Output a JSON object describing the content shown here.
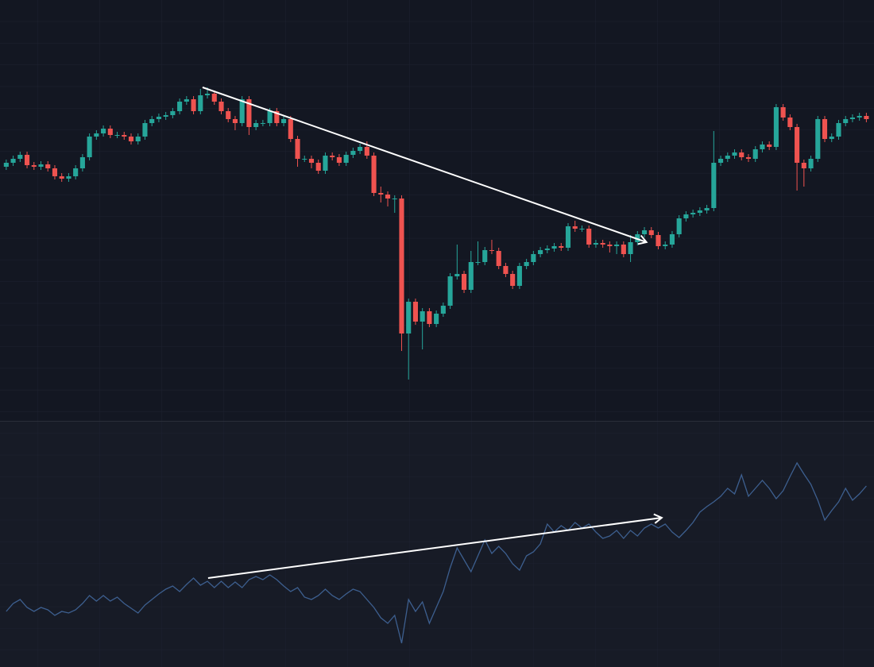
{
  "chart_data": [
    {
      "type": "candlestick",
      "up_color": "#26a69a",
      "down_color": "#ef5350",
      "xlim": [
        -0.9,
        125.1
      ],
      "ylim": [
        0,
        530
      ],
      "open": [
        320,
        325,
        330,
        335,
        322,
        320,
        323,
        318,
        308,
        305,
        308,
        318,
        332,
        358,
        362,
        368,
        360,
        360,
        358,
        352,
        358,
        375,
        380,
        383,
        385,
        390,
        402,
        405,
        390,
        410,
        412,
        402,
        390,
        380,
        375,
        405,
        370,
        375,
        375,
        390,
        375,
        380,
        355,
        330,
        330,
        325,
        315,
        334,
        332,
        325,
        335,
        340,
        345,
        334,
        287,
        285,
        280,
        280,
        110,
        150,
        125,
        138,
        122,
        135,
        145,
        182,
        185,
        165,
        200,
        200,
        215,
        214,
        195,
        185,
        170,
        195,
        200,
        210,
        215,
        217,
        220,
        218,
        245,
        242,
        242,
        222,
        224,
        222,
        220,
        222,
        210,
        225,
        235,
        240,
        234,
        220,
        222,
        235,
        255,
        260,
        262,
        265,
        268,
        325,
        330,
        334,
        338,
        332,
        330,
        342,
        348,
        345,
        395,
        382,
        370,
        325,
        318,
        330,
        380,
        355,
        358,
        375,
        380,
        382,
        384
      ],
      "high": [
        329,
        334,
        339,
        339,
        326,
        327,
        327,
        322,
        312,
        312,
        322,
        336,
        362,
        366,
        372,
        372,
        364,
        364,
        362,
        362,
        379,
        384,
        387,
        389,
        394,
        406,
        409,
        409,
        418,
        420,
        416,
        406,
        394,
        384,
        409,
        409,
        379,
        379,
        394,
        394,
        384,
        384,
        359,
        334,
        334,
        329,
        338,
        338,
        336,
        339,
        344,
        349,
        352,
        338,
        295,
        289,
        284,
        284,
        154,
        154,
        142,
        142,
        139,
        149,
        186,
        222,
        189,
        214,
        226,
        219,
        228,
        218,
        199,
        189,
        199,
        204,
        214,
        219,
        221,
        224,
        224,
        249,
        252,
        246,
        246,
        228,
        228,
        226,
        226,
        226,
        234,
        239,
        244,
        244,
        238,
        226,
        239,
        259,
        264,
        266,
        269,
        272,
        365,
        334,
        338,
        342,
        342,
        336,
        346,
        352,
        352,
        399,
        399,
        386,
        374,
        329,
        334,
        384,
        384,
        362,
        379,
        384,
        386,
        388,
        388
      ],
      "low": [
        316,
        321,
        326,
        318,
        316,
        316,
        314,
        304,
        301,
        301,
        304,
        314,
        328,
        354,
        358,
        356,
        356,
        354,
        348,
        348,
        354,
        371,
        376,
        379,
        381,
        386,
        398,
        386,
        386,
        406,
        398,
        386,
        376,
        366,
        371,
        360,
        366,
        371,
        371,
        371,
        371,
        351,
        320,
        326,
        318,
        311,
        311,
        328,
        321,
        321,
        331,
        336,
        330,
        283,
        275,
        270,
        262,
        88,
        52,
        121,
        90,
        118,
        118,
        131,
        141,
        178,
        161,
        161,
        196,
        196,
        210,
        191,
        181,
        166,
        166,
        191,
        196,
        206,
        211,
        213,
        214,
        214,
        238,
        238,
        218,
        218,
        218,
        212,
        210,
        206,
        200,
        221,
        231,
        230,
        216,
        216,
        218,
        231,
        251,
        256,
        258,
        261,
        264,
        321,
        326,
        330,
        328,
        326,
        326,
        338,
        341,
        341,
        378,
        366,
        290,
        295,
        314,
        326,
        351,
        351,
        354,
        371,
        376,
        378,
        376
      ],
      "close": [
        325,
        330,
        335,
        322,
        320,
        323,
        318,
        308,
        305,
        308,
        318,
        332,
        358,
        362,
        368,
        360,
        360,
        358,
        352,
        358,
        375,
        380,
        383,
        385,
        390,
        402,
        405,
        390,
        410,
        412,
        402,
        390,
        380,
        375,
        405,
        370,
        375,
        375,
        390,
        375,
        380,
        355,
        330,
        330,
        325,
        315,
        334,
        332,
        325,
        335,
        340,
        345,
        334,
        287,
        285,
        280,
        280,
        110,
        150,
        125,
        138,
        122,
        135,
        145,
        182,
        185,
        165,
        200,
        200,
        215,
        214,
        195,
        185,
        170,
        195,
        200,
        210,
        215,
        217,
        220,
        218,
        245,
        242,
        242,
        222,
        224,
        222,
        220,
        222,
        210,
        225,
        235,
        240,
        234,
        220,
        222,
        235,
        255,
        260,
        262,
        265,
        268,
        325,
        330,
        334,
        338,
        332,
        330,
        342,
        348,
        345,
        395,
        382,
        370,
        325,
        318,
        330,
        380,
        355,
        358,
        375,
        380,
        382,
        384,
        380
      ],
      "trendline": {
        "color": "#ffffff",
        "x": [
          28.3,
          92.3
        ],
        "y": [
          420,
          225
        ]
      }
    },
    {
      "type": "line",
      "color": "#3d5f8f",
      "xlim": [
        -0.9,
        125.1
      ],
      "ylim": [
        0,
        310
      ],
      "values": [
        70,
        80,
        85,
        75,
        70,
        75,
        72,
        65,
        70,
        68,
        72,
        80,
        90,
        83,
        90,
        83,
        88,
        80,
        74,
        68,
        78,
        85,
        92,
        98,
        102,
        95,
        104,
        112,
        103,
        108,
        100,
        108,
        100,
        107,
        100,
        110,
        114,
        110,
        116,
        110,
        102,
        95,
        100,
        88,
        85,
        90,
        98,
        90,
        85,
        92,
        98,
        95,
        85,
        75,
        62,
        55,
        65,
        30,
        85,
        70,
        82,
        55,
        75,
        95,
        125,
        150,
        135,
        120,
        140,
        160,
        143,
        152,
        143,
        130,
        122,
        140,
        145,
        155,
        180,
        170,
        178,
        172,
        182,
        175,
        180,
        170,
        162,
        165,
        172,
        162,
        172,
        165,
        175,
        180,
        175,
        180,
        170,
        163,
        172,
        182,
        195,
        202,
        208,
        215,
        225,
        218,
        242,
        215,
        225,
        235,
        225,
        212,
        222,
        240,
        257,
        243,
        230,
        210,
        185,
        197,
        208,
        225,
        210,
        218,
        228
      ],
      "trendline": {
        "color": "#ffffff",
        "x": [
          29.1,
          94.5
        ],
        "y": [
          112,
          188
        ]
      }
    }
  ]
}
